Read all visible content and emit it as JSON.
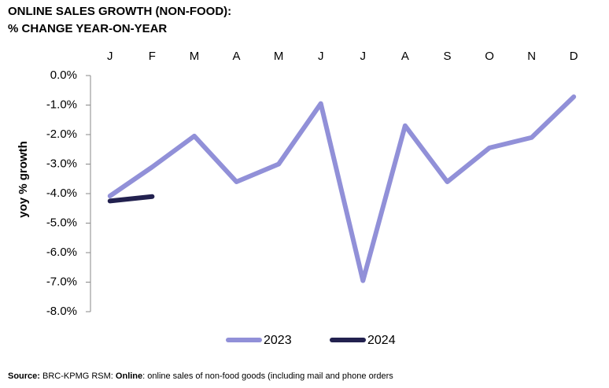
{
  "chart_data": {
    "type": "line",
    "title": [
      "ONLINE SALES GROWTH (NON-FOOD):",
      "% CHANGE YEAR-ON-YEAR"
    ],
    "title_color": "#4b2e6f",
    "y_label": "yoy % growth",
    "categories": [
      "J",
      "F",
      "M",
      "A",
      "M",
      "J",
      "J",
      "A",
      "S",
      "O",
      "N",
      "D"
    ],
    "series": [
      {
        "name": "2023",
        "color": "#9190d8",
        "values": [
          -4.08,
          -3.1,
          -2.05,
          -3.6,
          -3.0,
          -0.95,
          -6.95,
          -1.7,
          -3.6,
          -2.45,
          -2.1,
          -0.72
        ]
      },
      {
        "name": "2024",
        "color": "#22214f",
        "values": [
          -4.25,
          -4.1,
          null,
          null,
          null,
          null,
          null,
          null,
          null,
          null,
          null,
          null
        ]
      }
    ],
    "ylim": [
      -8,
      0
    ],
    "yticks": [
      {
        "value": 0,
        "label": "0.0%"
      },
      {
        "value": -1,
        "label": "-1.0%"
      },
      {
        "value": -2,
        "label": "-2.0%"
      },
      {
        "value": -3,
        "label": "-3.0%"
      },
      {
        "value": -4,
        "label": "-4.0%"
      },
      {
        "value": -5,
        "label": "-5.0%"
      },
      {
        "value": -6,
        "label": "-6.0%"
      },
      {
        "value": -7,
        "label": "-7.0%"
      },
      {
        "value": -8,
        "label": "-8.0%"
      }
    ],
    "grid": false,
    "legend": "bottom",
    "source": [
      {
        "text": "Source:",
        "bold": true
      },
      {
        "text": " BRC-KPMG RSM: ",
        "bold": false
      },
      {
        "text": "Online",
        "bold": true
      },
      {
        "text": ": online sales of non-food goods (including mail and phone orders",
        "bold": false
      }
    ]
  }
}
